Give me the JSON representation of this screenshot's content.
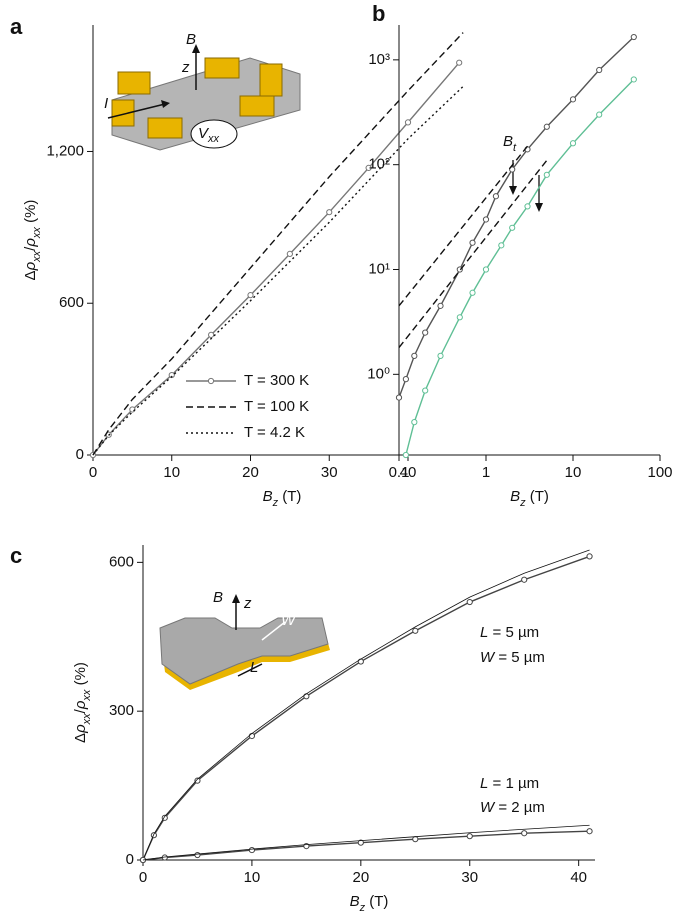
{
  "chart_data": [
    {
      "type": "line",
      "panel": "a",
      "scale": "linear",
      "x_label": [
        {
          "t": "B",
          "i": true
        },
        {
          "t": "z",
          "sub": true,
          "i": true
        },
        {
          "t": " (T)"
        }
      ],
      "y_label": [
        {
          "t": "Δ"
        },
        {
          "t": "ρ",
          "i": true
        },
        {
          "t": "xx",
          "sub": true,
          "i": true
        },
        {
          "t": "/"
        },
        {
          "t": "ρ",
          "i": true
        },
        {
          "t": "xx",
          "sub": true,
          "i": true
        },
        {
          "t": " (%)"
        }
      ],
      "xlim": [
        0,
        48
      ],
      "ylim": [
        0,
        1700
      ],
      "xticks": [
        0,
        10,
        20,
        30,
        40
      ],
      "yticks": [
        0,
        600,
        {
          "value": 1200,
          "label": "1,200"
        }
      ],
      "legend": "lower right",
      "series": [
        {
          "name": "T = 300 K",
          "color": "#777777",
          "style": "solid",
          "marker": "circle",
          "x": [
            0,
            2,
            5,
            10,
            15,
            20,
            25,
            30,
            35,
            40,
            46.5
          ],
          "values": [
            0,
            80,
            180,
            316,
            475,
            632,
            795,
            960,
            1135,
            1315,
            1551
          ]
        },
        {
          "name": "T = 100 K",
          "color": "#111111",
          "style": "dashed",
          "x": [
            0,
            2,
            5,
            10,
            15,
            20,
            25,
            30,
            35,
            40,
            47
          ],
          "values": [
            0,
            100,
            220,
            380,
            560,
            740,
            920,
            1100,
            1270,
            1440,
            1670
          ]
        },
        {
          "name": "T = 4.2 K",
          "color": "#111111",
          "style": "dotted",
          "x": [
            0,
            2,
            5,
            10,
            15,
            20,
            25,
            30,
            35,
            40,
            47
          ],
          "values": [
            0,
            78,
            170,
            310,
            460,
            610,
            765,
            920,
            1085,
            1250,
            1457
          ]
        }
      ]
    },
    {
      "type": "line",
      "panel": "b",
      "scale": "log",
      "x_label": [
        {
          "t": "B",
          "i": true
        },
        {
          "t": "z",
          "sub": true,
          "i": true
        },
        {
          "t": " (T)"
        }
      ],
      "xlim": [
        0.1,
        100
      ],
      "ylim": [
        0.17,
        2150
      ],
      "xticks": [
        0.1,
        1,
        10,
        100
      ],
      "yticks": [
        {
          "value": 1,
          "label": "10⁰"
        },
        {
          "value": 10,
          "label": "10¹"
        },
        {
          "value": 100,
          "label": "10²"
        },
        {
          "value": 1000,
          "label": "10³"
        }
      ],
      "annotations": [
        {
          "parts": [
            {
              "t": "B",
              "i": true
            },
            {
              "t": "t",
              "sub": true,
              "i": true
            }
          ]
        }
      ],
      "series": [
        {
          "color": "#555555",
          "style": "solid",
          "marker": "circle",
          "x": [
            0.1,
            0.12,
            0.15,
            0.2,
            0.3,
            0.5,
            0.7,
            1,
            1.3,
            2,
            3,
            5,
            10,
            20,
            50
          ],
          "values": [
            0.6,
            0.9,
            1.5,
            2.5,
            4.5,
            10,
            18,
            30,
            50,
            90,
            140,
            230,
            420,
            800,
            1650
          ]
        },
        {
          "color": "#5fbf95",
          "style": "solid",
          "marker": "circle",
          "x": [
            0.12,
            0.15,
            0.2,
            0.3,
            0.5,
            0.7,
            1,
            1.5,
            2,
            3,
            5,
            10,
            20,
            50
          ],
          "values": [
            0.17,
            0.35,
            0.7,
            1.5,
            3.5,
            6,
            10,
            17,
            25,
            40,
            80,
            160,
            300,
            650
          ]
        },
        {
          "color": "#111111",
          "style": "dashed",
          "x": [
            0.1,
            3
          ],
          "values": [
            4.5,
            150
          ]
        },
        {
          "color": "#111111",
          "style": "dashed",
          "x": [
            0.1,
            5
          ],
          "values": [
            1.8,
            110
          ]
        }
      ]
    },
    {
      "type": "line",
      "panel": "c",
      "scale": "linear",
      "x_label": [
        {
          "t": "B",
          "i": true
        },
        {
          "t": "z",
          "sub": true,
          "i": true
        },
        {
          "t": " (T)"
        }
      ],
      "y_label": [
        {
          "t": "Δ"
        },
        {
          "t": "ρ",
          "i": true
        },
        {
          "t": "xx",
          "sub": true,
          "i": true
        },
        {
          "t": "/"
        },
        {
          "t": "ρ",
          "i": true
        },
        {
          "t": "xx",
          "sub": true,
          "i": true
        },
        {
          "t": " (%)"
        }
      ],
      "xlim": [
        0,
        41.5
      ],
      "ylim": [
        0,
        635
      ],
      "xticks": [
        0,
        10,
        20,
        30,
        40
      ],
      "yticks": [
        0,
        300,
        600
      ],
      "annotations": [
        {
          "parts": [
            {
              "t": "L",
              "i": true
            },
            {
              "t": " = 5 µm"
            }
          ]
        },
        {
          "parts": [
            {
              "t": "W",
              "i": true
            },
            {
              "t": " = 5 µm"
            }
          ]
        },
        {
          "parts": [
            {
              "t": "L",
              "i": true
            },
            {
              "t": " = 1 µm"
            }
          ]
        },
        {
          "parts": [
            {
              "t": "W",
              "i": true
            },
            {
              "t": " = 2 µm"
            }
          ]
        }
      ],
      "series": [
        {
          "color": "#444444",
          "style": "solid",
          "marker": "circle",
          "x": [
            0,
            1,
            2,
            5,
            10,
            15,
            20,
            25,
            30,
            35,
            41
          ],
          "values": [
            0,
            50,
            85,
            160,
            250,
            330,
            400,
            462,
            520,
            565,
            612
          ]
        },
        {
          "color": "#111111",
          "style": "thin",
          "x": [
            0,
            1,
            2,
            5,
            10,
            15,
            20,
            25,
            30,
            35,
            41
          ],
          "values": [
            0,
            52,
            88,
            163,
            255,
            335,
            405,
            470,
            530,
            578,
            625
          ]
        },
        {
          "color": "#444444",
          "style": "solid",
          "marker": "circle",
          "x": [
            0,
            2,
            5,
            10,
            15,
            20,
            25,
            30,
            35,
            41
          ],
          "values": [
            0,
            5,
            10,
            20,
            28,
            35,
            42,
            48,
            54,
            58
          ]
        },
        {
          "color": "#111111",
          "style": "thin",
          "x": [
            0,
            2,
            5,
            10,
            15,
            20,
            25,
            30,
            35,
            41
          ],
          "values": [
            0,
            6,
            12,
            22,
            31,
            39,
            47,
            55,
            62,
            70
          ]
        }
      ]
    },
    {
      "insets": {
        "a": [
          {
            "t": "B",
            "i": true
          },
          {
            "t": "z",
            "i": true
          },
          {
            "t": "I",
            "i": true
          },
          {
            "t": "V",
            "i": true
          },
          {
            "t": "xx",
            "i": true
          }
        ],
        "c": [
          {
            "t": "B",
            "i": true
          },
          {
            "t": "z",
            "i": true
          },
          {
            "t": "W",
            "i": true
          },
          {
            "t": "L",
            "i": true
          }
        ]
      }
    }
  ]
}
